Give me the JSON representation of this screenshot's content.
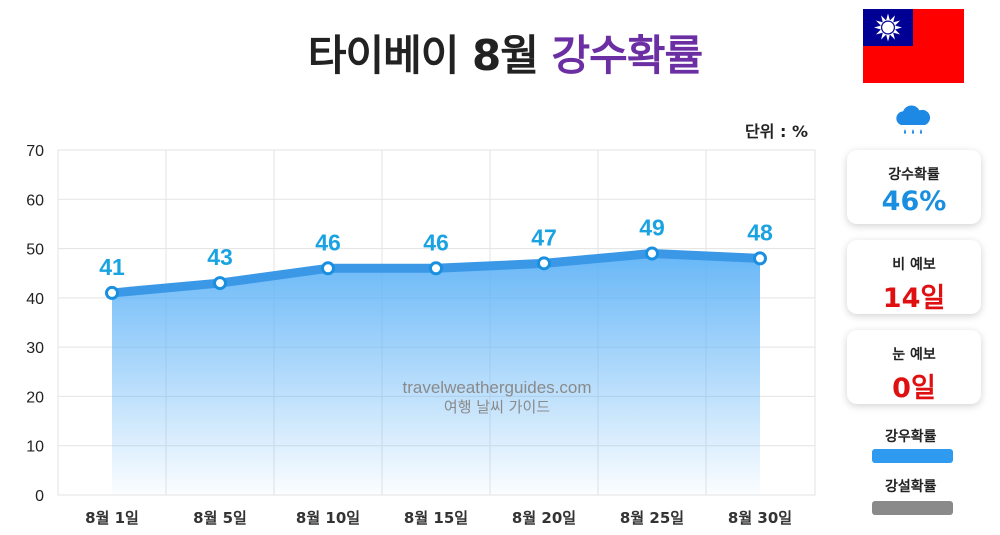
{
  "title": {
    "prefix": "타이베이 8월",
    "accent": "강수확률"
  },
  "unit_label": "단위 : %",
  "icons": {
    "flag": "taiwan-flag-icon",
    "weather": "rain-cloud-icon"
  },
  "chart_data": {
    "type": "area",
    "categories": [
      "8월 1일",
      "8월 5일",
      "8월 10일",
      "8월 15일",
      "8월 20일",
      "8월 25일",
      "8월 30일"
    ],
    "series": [
      {
        "name": "강우확률",
        "values": [
          41,
          43,
          46,
          46,
          47,
          49,
          48
        ],
        "color": "#3a98e6"
      }
    ],
    "ylim": [
      0,
      70
    ],
    "yticks": [
      0,
      10,
      20,
      30,
      40,
      50,
      60,
      70
    ],
    "grid": true,
    "watermark": [
      "travelweatherguides.com",
      "여행 날씨 가이드"
    ]
  },
  "cards": [
    {
      "label": "강수확률",
      "value": "46%",
      "color": "#1a8fe0"
    },
    {
      "label": "비 예보",
      "value": "14일",
      "color": "#e01010"
    },
    {
      "label": "눈 예보",
      "value": "0일",
      "color": "#e01010"
    }
  ],
  "legend": [
    {
      "label": "강우확률",
      "color": "#2f9bf0"
    },
    {
      "label": "강설확률",
      "color": "#8a8a8a"
    }
  ]
}
